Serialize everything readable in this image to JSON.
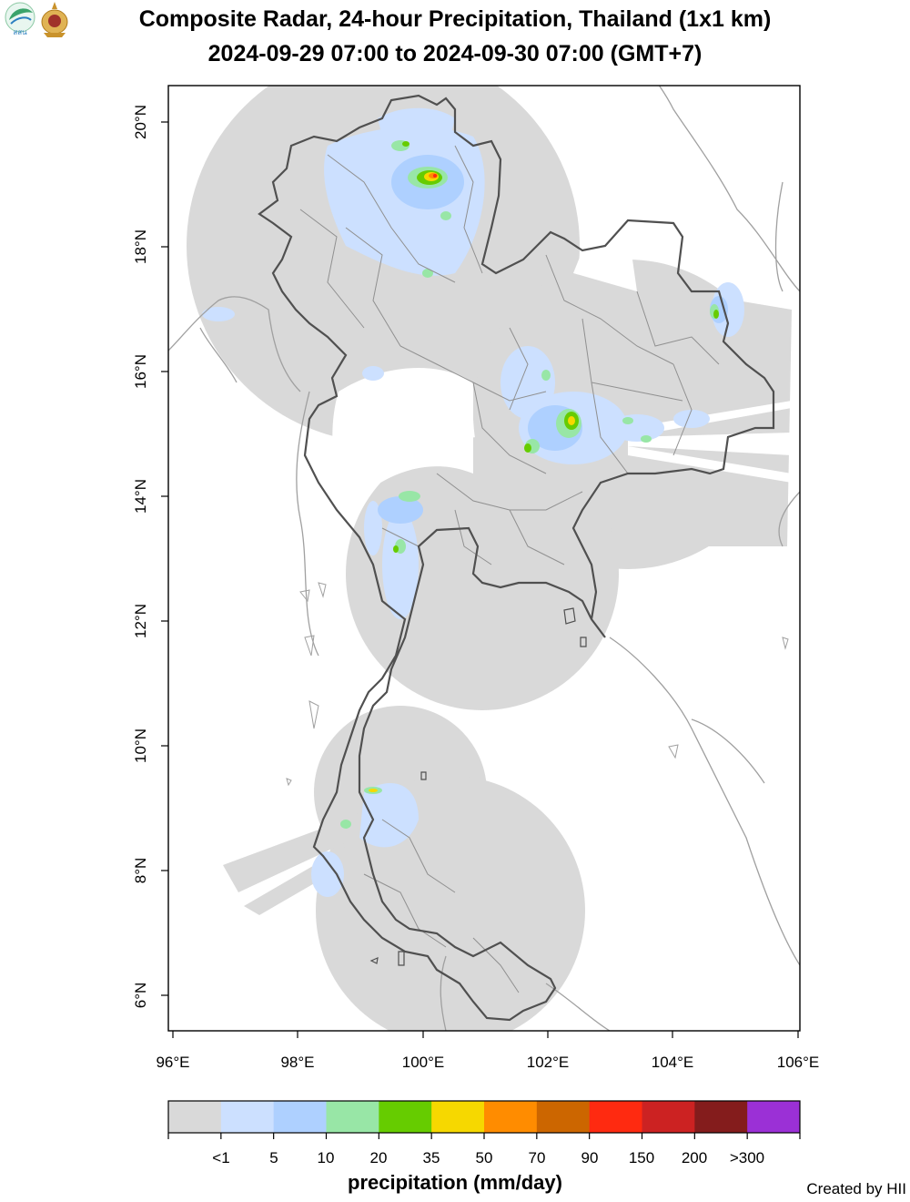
{
  "title": {
    "line1": "Composite Radar, 24-hour Precipitation, Thailand (1x1 km)",
    "line2": "2024-09-29 07:00 to 2024-09-30 07:00 (GMT+7)"
  },
  "logos": {
    "left": "hii-logo",
    "right": "royal-emblem-logo",
    "left_text": "สสน"
  },
  "axes": {
    "x_ticks": [
      "96°E",
      "98°E",
      "100°E",
      "102°E",
      "104°E",
      "106°E"
    ],
    "y_ticks": [
      "20°N",
      "18°N",
      "16°N",
      "14°N",
      "12°N",
      "10°N",
      "8°N",
      "6°N"
    ]
  },
  "legend": {
    "title": "precipitation (mm/day)",
    "labels": [
      "<1",
      "5",
      "10",
      "20",
      "35",
      "50",
      "70",
      "90",
      "150",
      "200",
      ">300"
    ],
    "colors": [
      "#d9d9d9",
      "#cce0ff",
      "#aed0ff",
      "#98e6a6",
      "#66cc00",
      "#f6d800",
      "#ff8c00",
      "#cc6600",
      "#ff2a10",
      "#cc2222",
      "#841c1c",
      "#9b30d6"
    ]
  },
  "credit": "Created by HII"
}
